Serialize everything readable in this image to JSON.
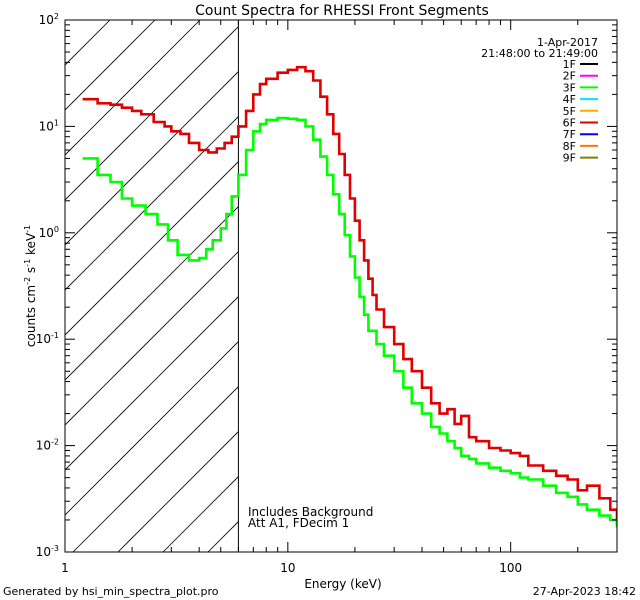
{
  "chart_data": {
    "type": "line",
    "title": "Count Spectra for RHESSI Front Segments",
    "xlabel": "Energy (keV)",
    "ylabel_parts": {
      "base": "counts cm",
      "exp1": "-2",
      "mid": " s",
      "exp2": "-1",
      "mid2": " keV",
      "exp3": "-1"
    },
    "x_scale": "log",
    "y_scale": "log",
    "xlim": [
      1,
      300
    ],
    "ylim": [
      0.001,
      100
    ],
    "x_ticks": [
      {
        "value": 1,
        "label": "1"
      },
      {
        "value": 10,
        "label": "10"
      },
      {
        "value": 100,
        "label": "100"
      }
    ],
    "y_ticks": [
      {
        "value": 0.001,
        "base": "10",
        "exp": "-3"
      },
      {
        "value": 0.01,
        "base": "10",
        "exp": "-2"
      },
      {
        "value": 0.1,
        "base": "10",
        "exp": "-1"
      },
      {
        "value": 1,
        "base": "10",
        "exp": "0"
      },
      {
        "value": 10,
        "base": "10",
        "exp": "1"
      },
      {
        "value": 100,
        "base": "10",
        "exp": "2"
      }
    ],
    "hatched_region": {
      "xmin": 1,
      "xmax": 6
    },
    "legend": {
      "date": "1-Apr-2017",
      "time_range": "21:48:00 to 21:49:00",
      "entries": [
        {
          "label": "1F",
          "color": "#000000"
        },
        {
          "label": "2F",
          "color": "#ff00ff"
        },
        {
          "label": "3F",
          "color": "#00ff00"
        },
        {
          "label": "4F",
          "color": "#00e5ff"
        },
        {
          "label": "5F",
          "color": "#ffaa00"
        },
        {
          "label": "6F",
          "color": "#e00000"
        },
        {
          "label": "7F",
          "color": "#0000ff"
        },
        {
          "label": "8F",
          "color": "#ff7700"
        },
        {
          "label": "9F",
          "color": "#808000"
        }
      ]
    },
    "annotations": [
      "Includes Background",
      "Att A1, FDecim 1"
    ],
    "series": [
      {
        "name": "6F",
        "color": "#e00000",
        "points": [
          [
            1.2,
            18
          ],
          [
            1.3,
            18
          ],
          [
            1.4,
            16.5
          ],
          [
            1.6,
            16
          ],
          [
            1.8,
            15
          ],
          [
            2.0,
            14
          ],
          [
            2.2,
            13
          ],
          [
            2.5,
            11
          ],
          [
            2.8,
            10
          ],
          [
            3.0,
            9
          ],
          [
            3.3,
            8.5
          ],
          [
            3.6,
            7
          ],
          [
            4.0,
            6
          ],
          [
            4.4,
            5.7
          ],
          [
            4.8,
            6.2
          ],
          [
            5.2,
            7
          ],
          [
            5.6,
            8
          ],
          [
            6.0,
            10
          ],
          [
            6.5,
            14
          ],
          [
            7.0,
            20
          ],
          [
            7.5,
            25
          ],
          [
            8.0,
            28
          ],
          [
            9.0,
            32
          ],
          [
            10.0,
            34
          ],
          [
            11.0,
            36
          ],
          [
            12.0,
            33
          ],
          [
            13.0,
            27
          ],
          [
            14.0,
            19
          ],
          [
            15.0,
            13
          ],
          [
            16.0,
            8.5
          ],
          [
            17.0,
            5.5
          ],
          [
            18.0,
            3.5
          ],
          [
            19.0,
            2.1
          ],
          [
            20.0,
            1.3
          ],
          [
            21.0,
            0.85
          ],
          [
            22.0,
            0.55
          ],
          [
            23.0,
            0.37
          ],
          [
            24.0,
            0.26
          ],
          [
            25.0,
            0.19
          ],
          [
            27.0,
            0.13
          ],
          [
            30.0,
            0.09
          ],
          [
            33.0,
            0.065
          ],
          [
            36.0,
            0.05
          ],
          [
            40.0,
            0.035
          ],
          [
            44.0,
            0.025
          ],
          [
            48.0,
            0.02
          ],
          [
            52.0,
            0.022
          ],
          [
            56.0,
            0.016
          ],
          [
            60.0,
            0.019
          ],
          [
            65.0,
            0.012
          ],
          [
            70.0,
            0.011
          ],
          [
            80.0,
            0.0095
          ],
          [
            90.0,
            0.009
          ],
          [
            100.0,
            0.0085
          ],
          [
            110.0,
            0.008
          ],
          [
            120.0,
            0.0065
          ],
          [
            140.0,
            0.0058
          ],
          [
            160.0,
            0.0052
          ],
          [
            180.0,
            0.0048
          ],
          [
            200.0,
            0.0038
          ],
          [
            220.0,
            0.0042
          ],
          [
            250.0,
            0.0032
          ],
          [
            280.0,
            0.0025
          ],
          [
            300.0,
            0.0018
          ]
        ]
      },
      {
        "name": "3F",
        "color": "#00ff00",
        "points": [
          [
            1.2,
            5
          ],
          [
            1.3,
            5
          ],
          [
            1.4,
            3.5
          ],
          [
            1.6,
            3.0
          ],
          [
            1.8,
            2.1
          ],
          [
            2.0,
            1.8
          ],
          [
            2.3,
            1.5
          ],
          [
            2.6,
            1.2
          ],
          [
            2.9,
            0.85
          ],
          [
            3.2,
            0.62
          ],
          [
            3.6,
            0.55
          ],
          [
            4.0,
            0.58
          ],
          [
            4.3,
            0.7
          ],
          [
            4.6,
            0.85
          ],
          [
            5.0,
            1.1
          ],
          [
            5.3,
            1.5
          ],
          [
            5.6,
            2.2
          ],
          [
            6.0,
            3.5
          ],
          [
            6.5,
            6
          ],
          [
            7.0,
            9
          ],
          [
            7.5,
            10.5
          ],
          [
            8.0,
            11.5
          ],
          [
            9.0,
            12
          ],
          [
            10.0,
            11.8
          ],
          [
            11.0,
            11.5
          ],
          [
            12.0,
            10
          ],
          [
            13.0,
            7.5
          ],
          [
            14.0,
            5.2
          ],
          [
            15.0,
            3.5
          ],
          [
            16.0,
            2.3
          ],
          [
            17.0,
            1.5
          ],
          [
            18.0,
            0.95
          ],
          [
            19.0,
            0.6
          ],
          [
            20.0,
            0.38
          ],
          [
            21.0,
            0.25
          ],
          [
            22.0,
            0.17
          ],
          [
            23.0,
            0.12
          ],
          [
            25.0,
            0.09
          ],
          [
            27.0,
            0.07
          ],
          [
            30.0,
            0.05
          ],
          [
            33.0,
            0.035
          ],
          [
            36.0,
            0.025
          ],
          [
            40.0,
            0.02
          ],
          [
            44.0,
            0.015
          ],
          [
            48.0,
            0.013
          ],
          [
            52.0,
            0.011
          ],
          [
            56.0,
            0.0095
          ],
          [
            60.0,
            0.008
          ],
          [
            65.0,
            0.0075
          ],
          [
            70.0,
            0.0068
          ],
          [
            80.0,
            0.0062
          ],
          [
            90.0,
            0.0058
          ],
          [
            100.0,
            0.0055
          ],
          [
            110.0,
            0.005
          ],
          [
            120.0,
            0.0048
          ],
          [
            140.0,
            0.0042
          ],
          [
            160.0,
            0.0036
          ],
          [
            180.0,
            0.0033
          ],
          [
            200.0,
            0.0028
          ],
          [
            220.0,
            0.0025
          ],
          [
            250.0,
            0.0022
          ],
          [
            280.0,
            0.002
          ],
          [
            300.0,
            0.0017
          ]
        ]
      }
    ]
  },
  "footer": {
    "left": "Generated by hsi_min_spectra_plot.pro",
    "right": "27-Apr-2023 18:42"
  }
}
